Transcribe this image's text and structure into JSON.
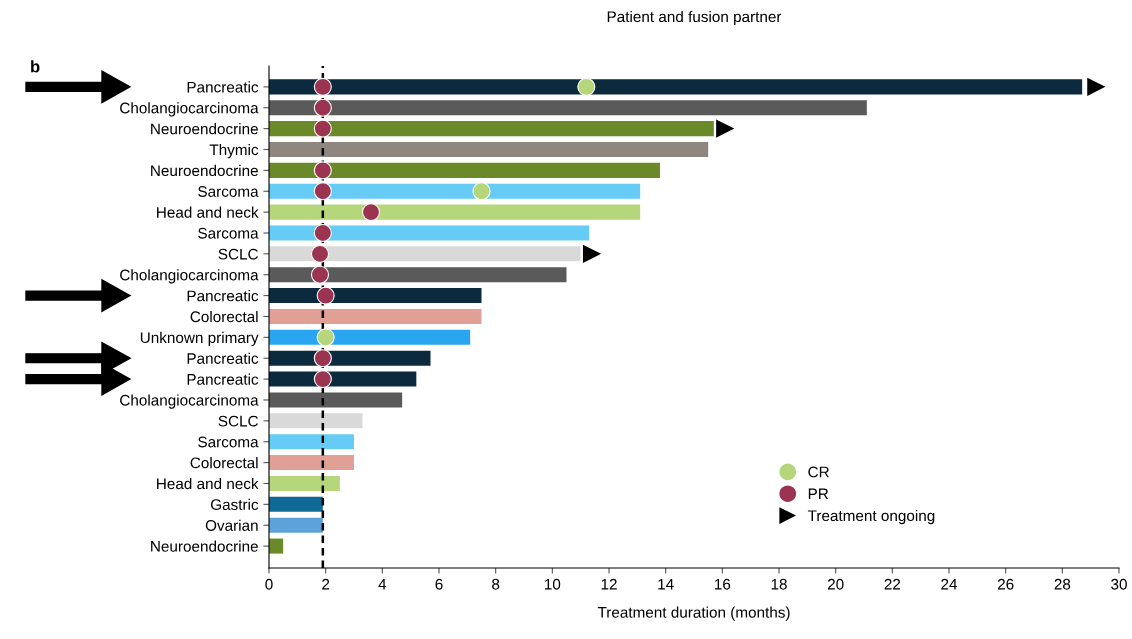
{
  "chart_data": {
    "type": "bar",
    "orientation": "horizontal",
    "title": "Patient and fusion partner",
    "xlabel": "Treatment duration (months)",
    "categories": [
      "Pancreatic",
      "Cholangiocarcinoma",
      "Neuroendocrine",
      "Thymic",
      "Neuroendocrine",
      "Sarcoma",
      "Head and neck",
      "Sarcoma",
      "SCLC",
      "Cholangiocarcinoma",
      "Pancreatic",
      "Colorectal",
      "Unknown primary",
      "Pancreatic",
      "Pancreatic",
      "Cholangiocarcinoma",
      "SCLC",
      "Sarcoma",
      "Colorectal",
      "Head and neck",
      "Gastric",
      "Ovarian",
      "Neuroendocrine"
    ],
    "series": [
      {
        "values": [
          28.7,
          21.1,
          15.7,
          15.5,
          13.8,
          13.1,
          13.1,
          11.3,
          11.0,
          10.5,
          7.5,
          7.5,
          7.1,
          5.7,
          5.2,
          4.7,
          3.3,
          3.0,
          3.0,
          2.5,
          1.9,
          1.9,
          0.5
        ],
        "colors": [
          "#0b2a3e",
          "#5a5a5a",
          "#6a8a2a",
          "#8f8680",
          "#6a8a2a",
          "#66ccf5",
          "#b5d67a",
          "#66ccf5",
          "#d9d9d9",
          "#5a5a5a",
          "#0b2a3e",
          "#e0a095",
          "#2aa5f0",
          "#0b2a3e",
          "#0b2a3e",
          "#5a5a5a",
          "#d9d9d9",
          "#66ccf5",
          "#e0a095",
          "#b5d67a",
          "#0f6a96",
          "#5ba3d9",
          "#6a8a2a"
        ]
      },
      {
        "type": "scatter",
        "name": "CR",
        "color": "#b5d67a",
        "marker": "circle",
        "values": [
          11.2,
          null,
          null,
          null,
          null,
          7.5,
          null,
          null,
          null,
          null,
          null,
          null,
          2.0,
          null,
          null,
          null,
          null,
          null,
          null,
          null,
          null,
          null,
          null
        ]
      },
      {
        "type": "scatter",
        "name": "PR",
        "color": "#9b3450",
        "marker": "circle",
        "values": [
          1.9,
          1.9,
          1.9,
          null,
          1.9,
          1.9,
          3.6,
          1.9,
          1.8,
          1.8,
          2.0,
          null,
          null,
          1.9,
          1.9,
          null,
          null,
          null,
          null,
          null,
          null,
          null,
          null
        ]
      },
      {
        "type": "scatter",
        "name": "Treatment ongoing",
        "color": "#000000",
        "marker": "triangle",
        "values": [
          29.2,
          null,
          16.1,
          null,
          null,
          null,
          null,
          null,
          11.4,
          null,
          null,
          null,
          null,
          null,
          null,
          null,
          null,
          null,
          null,
          null,
          null,
          null,
          null
        ]
      }
    ],
    "xlim": [
      0,
      30
    ],
    "xticks": [
      0,
      2,
      4,
      6,
      8,
      10,
      12,
      14,
      16,
      18,
      20,
      22,
      24,
      26,
      28,
      30
    ],
    "ref_lines": [
      {
        "axis": "x",
        "value": 1.9,
        "color": "#000000",
        "line_style": "dashed"
      }
    ],
    "annotations": [
      "b"
    ],
    "legend": "bottom right",
    "grid": false
  }
}
